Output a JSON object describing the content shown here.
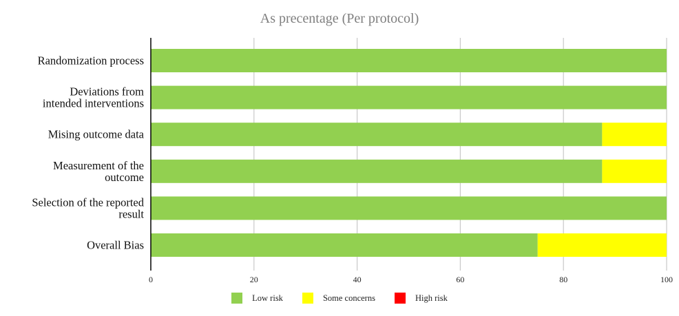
{
  "chart_data": {
    "type": "bar",
    "orientation": "horizontal",
    "stacked": true,
    "title": "As precentage (Per protocol)",
    "categories": [
      [
        "Randomization process"
      ],
      [
        "Deviations from",
        "intended interventions"
      ],
      [
        "Mising outcome data"
      ],
      [
        "Measurement of the",
        "outcome"
      ],
      [
        "Selection of the reported",
        "result"
      ],
      [
        "Overall Bias"
      ]
    ],
    "series": [
      {
        "name": "Low risk",
        "color": "#92d050",
        "values": [
          100,
          100,
          87.5,
          87.5,
          100,
          75
        ]
      },
      {
        "name": "Some concerns",
        "color": "#ffff00",
        "values": [
          0,
          0,
          12.5,
          12.5,
          0,
          25
        ]
      },
      {
        "name": "High risk",
        "color": "#ff0000",
        "values": [
          0,
          0,
          0,
          0,
          0,
          0
        ]
      }
    ],
    "xlim": [
      0,
      100
    ],
    "xticks": [
      "0",
      "20",
      "40",
      "60",
      "80",
      "100"
    ],
    "grid": "vertical",
    "legend": "bottom"
  }
}
